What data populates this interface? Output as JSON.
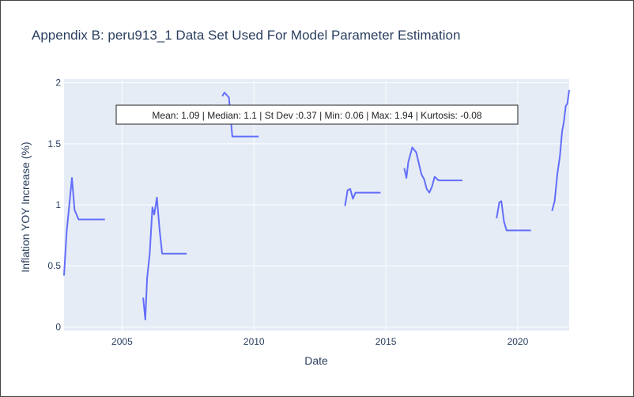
{
  "chart_data": {
    "type": "line",
    "title": "Appendix B: peru913_1 Data Set Used For Model Parameter Estimation",
    "xlabel": "Date",
    "ylabel": "Inflation YOY Increase (%)",
    "xlim": [
      2002.8,
      2021.95
    ],
    "ylim": [
      -0.03,
      2.03
    ],
    "x_ticks": [
      {
        "value": 2005,
        "label": "2005"
      },
      {
        "value": 2010,
        "label": "2010"
      },
      {
        "value": 2015,
        "label": "2015"
      },
      {
        "value": 2020,
        "label": "2020"
      }
    ],
    "y_ticks": [
      {
        "value": 0,
        "label": "0"
      },
      {
        "value": 0.5,
        "label": "0.5"
      },
      {
        "value": 1,
        "label": "1"
      },
      {
        "value": 1.5,
        "label": "1.5"
      },
      {
        "value": 2,
        "label": "2"
      }
    ],
    "grid": true,
    "line_color": "#636efa",
    "plot_bg": "#e5ecf6",
    "annotation": "Mean: 1.09 | Median: 1.1 | St Dev :0.37 | Min: 0.06 | Max: 1.94 | Kurtosis: -0.08",
    "segments": [
      [
        [
          2002.8,
          0.42
        ],
        [
          2002.9,
          0.78
        ],
        [
          2003.0,
          1.0
        ],
        [
          2003.1,
          1.22
        ],
        [
          2003.2,
          0.96
        ],
        [
          2003.35,
          0.88
        ],
        [
          2004.35,
          0.88
        ]
      ],
      [
        [
          2005.8,
          0.24
        ],
        [
          2005.88,
          0.06
        ],
        [
          2005.95,
          0.4
        ],
        [
          2006.05,
          0.6
        ],
        [
          2006.15,
          0.98
        ],
        [
          2006.22,
          0.92
        ],
        [
          2006.32,
          1.06
        ],
        [
          2006.42,
          0.8
        ],
        [
          2006.52,
          0.6
        ],
        [
          2007.45,
          0.6
        ]
      ],
      [
        [
          2008.8,
          1.89
        ],
        [
          2008.88,
          1.92
        ],
        [
          2009.05,
          1.88
        ],
        [
          2009.1,
          1.75
        ],
        [
          2009.18,
          1.56
        ],
        [
          2010.18,
          1.56
        ]
      ],
      [
        [
          2013.45,
          0.99
        ],
        [
          2013.55,
          1.12
        ],
        [
          2013.65,
          1.13
        ],
        [
          2013.75,
          1.05
        ],
        [
          2013.85,
          1.1
        ],
        [
          2014.8,
          1.1
        ]
      ],
      [
        [
          2015.7,
          1.3
        ],
        [
          2015.78,
          1.22
        ],
        [
          2015.85,
          1.35
        ],
        [
          2016.0,
          1.47
        ],
        [
          2016.15,
          1.43
        ],
        [
          2016.25,
          1.34
        ],
        [
          2016.35,
          1.25
        ],
        [
          2016.45,
          1.21
        ],
        [
          2016.55,
          1.13
        ],
        [
          2016.65,
          1.1
        ],
        [
          2016.75,
          1.15
        ],
        [
          2016.85,
          1.23
        ],
        [
          2017.0,
          1.2
        ],
        [
          2017.9,
          1.2
        ]
      ],
      [
        [
          2019.2,
          0.89
        ],
        [
          2019.3,
          1.02
        ],
        [
          2019.38,
          1.03
        ],
        [
          2019.48,
          0.86
        ],
        [
          2019.58,
          0.79
        ],
        [
          2020.5,
          0.79
        ]
      ],
      [
        [
          2021.3,
          0.95
        ],
        [
          2021.4,
          1.03
        ],
        [
          2021.5,
          1.25
        ],
        [
          2021.6,
          1.4
        ],
        [
          2021.68,
          1.6
        ],
        [
          2021.75,
          1.68
        ],
        [
          2021.82,
          1.81
        ],
        [
          2021.88,
          1.83
        ],
        [
          2021.95,
          1.94
        ]
      ]
    ]
  }
}
